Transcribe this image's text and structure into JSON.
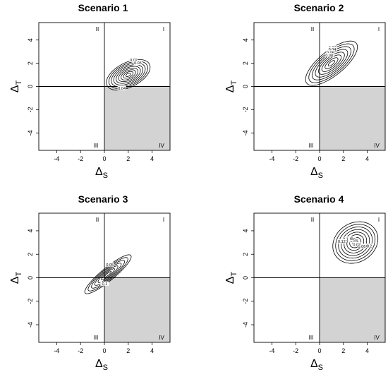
{
  "chart_data": [
    {
      "type": "contour",
      "title": "Scenario 1",
      "xlabel": "Δ",
      "xlabel_sub": "S",
      "ylabel": "Δ",
      "ylabel_sub": "T",
      "xlim": [
        -5.5,
        5.5
      ],
      "ylim": [
        -5.5,
        5.5
      ],
      "xticks": [
        -4,
        -2,
        0,
        2,
        4
      ],
      "yticks": [
        -4,
        -2,
        0,
        2,
        4
      ],
      "quadrants": [
        "I",
        "II",
        "III",
        "IV"
      ],
      "shaded_quadrant": "IV",
      "center": [
        2,
        1
      ],
      "contour_levels": [
        0.02,
        0.04,
        0.06,
        0.08,
        0.1,
        0.12,
        0.14,
        0.16,
        0.18
      ],
      "contour_labels": [
        "0.02",
        "0.06",
        "0.04"
      ]
    },
    {
      "type": "contour",
      "title": "Scenario 2",
      "xlabel": "Δ",
      "xlabel_sub": "S",
      "ylabel": "Δ",
      "ylabel_sub": "T",
      "xlim": [
        -5.5,
        5.5
      ],
      "ylim": [
        -5.5,
        5.5
      ],
      "xticks": [
        -4,
        -2,
        0,
        2,
        4
      ],
      "yticks": [
        -4,
        -2,
        0,
        2,
        4
      ],
      "quadrants": [
        "I",
        "II",
        "III",
        "IV"
      ],
      "shaded_quadrant": "IV",
      "center": [
        1,
        2
      ],
      "contour_levels": [
        0.02,
        0.04,
        0.06,
        0.08,
        0.1,
        0.12,
        0.14,
        0.16
      ],
      "contour_labels": [
        "0.02",
        "0.04",
        "0.06",
        "0.08"
      ]
    },
    {
      "type": "contour",
      "title": "Scenario 3",
      "xlabel": "Δ",
      "xlabel_sub": "S",
      "ylabel": "Δ",
      "ylabel_sub": "T",
      "xlim": [
        -5.5,
        5.5
      ],
      "ylim": [
        -5.5,
        5.5
      ],
      "xticks": [
        -4,
        -2,
        0,
        2,
        4
      ],
      "yticks": [
        -4,
        -2,
        0,
        2,
        4
      ],
      "quadrants": [
        "I",
        "II",
        "III",
        "IV"
      ],
      "shaded_quadrant": "IV",
      "center": [
        0.3,
        0.3
      ],
      "contour_levels": [
        0.05,
        0.1,
        0.15,
        0.2,
        0.25,
        0.3,
        0.35
      ],
      "contour_labels": [
        "0.05",
        "0.1"
      ]
    },
    {
      "type": "contour",
      "title": "Scenario 4",
      "xlabel": "Δ",
      "xlabel_sub": "S",
      "ylabel": "Δ",
      "ylabel_sub": "T",
      "xlim": [
        -5.5,
        5.5
      ],
      "ylim": [
        -5.5,
        5.5
      ],
      "xticks": [
        -4,
        -2,
        0,
        2,
        4
      ],
      "yticks": [
        -4,
        -2,
        0,
        2,
        4
      ],
      "quadrants": [
        "I",
        "II",
        "III",
        "IV"
      ],
      "shaded_quadrant": "IV",
      "center": [
        3,
        3
      ],
      "contour_levels": [
        0.02,
        0.04,
        0.06,
        0.08,
        0.1,
        0.12,
        0.14,
        0.16
      ],
      "contour_labels": [
        "0.04",
        "0.06",
        "0.08",
        "0.1",
        "0.12",
        "0.12",
        "0.08",
        "0.06",
        "0.02"
      ]
    }
  ],
  "style": {
    "shade_color": "#d3d3d3",
    "line_color": "#000000"
  }
}
